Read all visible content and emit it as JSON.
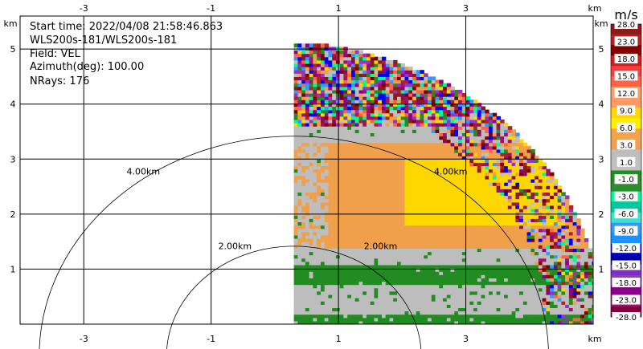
{
  "info": {
    "start_time": "Start time: 2022/04/08 21:58:46.863",
    "instrument": "WLS200s-181/WLS200s-181",
    "field": "Field: VEL",
    "azimuth": "Azimuth(deg): 100.00",
    "nrays": "NRays: 176"
  },
  "chart_data": {
    "type": "heatmap",
    "projection": "rhi",
    "x_unit": "km",
    "y_unit": "km",
    "xlim": [
      -4.0,
      5.0
    ],
    "ylim": [
      0.0,
      5.6
    ],
    "x_ticks": [
      -3,
      -1,
      1,
      3
    ],
    "y_ticks": [
      1,
      2,
      3,
      4,
      5
    ],
    "max_range_km": 5.1,
    "range_rings": [
      {
        "radius_km": 2.0,
        "label": "2.00km"
      },
      {
        "radius_km": 4.0,
        "label": "4.00km"
      }
    ],
    "colorbar": {
      "unit": "m/s",
      "tick_labels": [
        "28.0",
        "23.0",
        "18.0",
        "15.0",
        "12.0",
        "9.0",
        "6.0",
        "3.0",
        "1.0",
        "-1.0",
        "-3.0",
        "-6.0",
        "-9.0",
        "-12.0",
        "-15.0",
        "-18.0",
        "-23.0",
        "-28.0"
      ],
      "colors": [
        "#8b1a1a",
        "#b22222",
        "#800000",
        "#d81b1b",
        "#f04040",
        "#ff6347",
        "#f4a26a",
        "#ff9966",
        "#ffd700",
        "#ffee00",
        "#f5a34a",
        "#f0a050",
        "#bdbdbd",
        "#c0c0c0",
        "#228b22",
        "#2e8b2e",
        "#00fa9a",
        "#00c8a0",
        "#40e0d0",
        "#3399ff",
        "#1e90ff",
        "#0000ff",
        "#0000aa",
        "#7b2fbf",
        "#9932cc",
        "#8b008b",
        "#a01070",
        "#800040"
      ]
    },
    "velocity_layers_mps": [
      {
        "height_km": [
          0.0,
          0.2
        ],
        "velocity": -3.0
      },
      {
        "height_km": [
          0.2,
          0.7
        ],
        "velocity": -1.0
      },
      {
        "height_km": [
          0.7,
          1.1
        ],
        "velocity": -3.0
      },
      {
        "height_km": [
          1.1,
          1.4
        ],
        "velocity": -1.0
      },
      {
        "height_km": [
          1.4,
          3.3
        ],
        "velocity": 1.0
      },
      {
        "height_km": [
          3.3,
          3.6
        ],
        "velocity": -1.0
      },
      {
        "height_km": [
          3.6,
          5.1
        ],
        "velocity": "noise"
      }
    ],
    "yellow_region": {
      "x_km": [
        2.0,
        4.5
      ],
      "height_km": [
        1.8,
        3.0
      ],
      "velocity": 3.0
    }
  }
}
